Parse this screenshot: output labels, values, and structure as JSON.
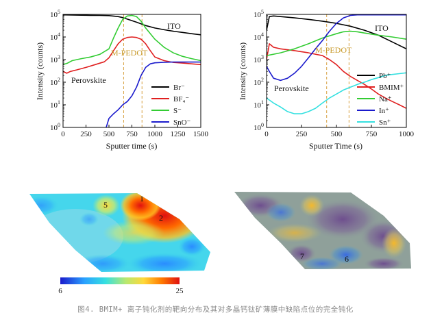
{
  "chart_data": [
    {
      "type": "line",
      "xlabel": "Sputter time (s)",
      "ylabel": "Intensity (counts)",
      "xlim": [
        0,
        1500
      ],
      "ylim": [
        1,
        100000
      ],
      "y_scale": "log",
      "x_ticks": [
        "0",
        "250",
        "500",
        "750",
        "1000",
        "1250",
        "1500"
      ],
      "y_ticks": [
        "10^0",
        "10^1",
        "10^2",
        "10^3",
        "10^4",
        "10^5"
      ],
      "annotations": [
        "ITO",
        "M-PEDOT",
        "Perovskite"
      ],
      "interface_lines_x": [
        660,
        860
      ],
      "legend_position": "lower-right",
      "series": [
        {
          "name": "Br⁻",
          "color": "#000000",
          "x": [
            0,
            100,
            200,
            300,
            400,
            500,
            600,
            650,
            700,
            800,
            900,
            1000,
            1100,
            1200,
            1300,
            1400,
            1500
          ],
          "y": [
            95000,
            93000,
            92000,
            91000,
            90000,
            88000,
            80000,
            72000,
            62000,
            45000,
            32000,
            25000,
            21000,
            18000,
            16000,
            14000,
            12500
          ]
        },
        {
          "name": "BF₄⁻",
          "color": "#e02020",
          "x": [
            0,
            40,
            80,
            150,
            250,
            350,
            450,
            500,
            550,
            600,
            650,
            700,
            750,
            800,
            850,
            900,
            950,
            1000,
            1100,
            1200,
            1300,
            1400,
            1500
          ],
          "y": [
            300,
            250,
            300,
            350,
            450,
            600,
            800,
            1200,
            2500,
            5000,
            8000,
            9500,
            10000,
            9500,
            8000,
            5000,
            2500,
            1300,
            900,
            750,
            700,
            650,
            600
          ]
        },
        {
          "name": "S⁻",
          "color": "#33cc33",
          "x": [
            0,
            50,
            100,
            200,
            300,
            400,
            500,
            550,
            600,
            650,
            700,
            750,
            800,
            850,
            900,
            1000,
            1100,
            1200,
            1300,
            1400,
            1500
          ],
          "y": [
            600,
            700,
            900,
            1100,
            1300,
            1700,
            3000,
            9000,
            25000,
            60000,
            85000,
            90000,
            80000,
            50000,
            25000,
            8000,
            3500,
            2000,
            1400,
            1100,
            900
          ]
        },
        {
          "name": "SnO⁻",
          "color": "#1a1acc",
          "x": [
            470,
            500,
            550,
            600,
            650,
            700,
            750,
            800,
            850,
            900,
            950,
            1000,
            1100,
            1200,
            1300,
            1400,
            1500
          ],
          "y": [
            1,
            2.5,
            4,
            6,
            10,
            14,
            25,
            60,
            200,
            450,
            650,
            720,
            760,
            780,
            780,
            780,
            780
          ]
        }
      ]
    },
    {
      "type": "line",
      "xlabel": "Sputter Time (s)",
      "ylabel": "Intensity (counts)",
      "xlim": [
        0,
        1000
      ],
      "ylim": [
        1,
        100000
      ],
      "y_scale": "log",
      "x_ticks": [
        "0",
        "250",
        "500",
        "750",
        "1000"
      ],
      "y_ticks": [
        "10^0",
        "10^1",
        "10^2",
        "10^3",
        "10^4",
        "10^5"
      ],
      "annotations": [
        "ITO",
        "M-PEDOT",
        "Perovskite"
      ],
      "interface_lines_x": [
        430,
        590
      ],
      "legend_position": "lower-right",
      "series": [
        {
          "name": "Pb⁺",
          "color": "#000000",
          "x": [
            0,
            20,
            50,
            100,
            200,
            300,
            400,
            500,
            600,
            700,
            800,
            900,
            1000
          ],
          "y": [
            20000,
            80000,
            85000,
            80000,
            70000,
            60000,
            50000,
            40000,
            30000,
            20000,
            12000,
            6000,
            3000
          ]
        },
        {
          "name": "BMIM⁺",
          "color": "#e02020",
          "x": [
            0,
            20,
            50,
            100,
            200,
            300,
            400,
            450,
            500,
            550,
            600,
            650,
            700,
            750,
            800,
            850,
            900,
            950,
            1000
          ],
          "y": [
            1000,
            5000,
            3500,
            3000,
            2500,
            2000,
            1500,
            1000,
            600,
            300,
            180,
            120,
            80,
            50,
            30,
            20,
            14,
            10,
            7
          ]
        },
        {
          "name": "Na⁺",
          "color": "#33cc33",
          "x": [
            0,
            100,
            200,
            300,
            400,
            500,
            550,
            600,
            650,
            700,
            800,
            900,
            1000
          ],
          "y": [
            1500,
            2000,
            3000,
            5000,
            9000,
            14000,
            17000,
            18000,
            17000,
            15000,
            12000,
            10000,
            8000
          ]
        },
        {
          "name": "In⁺",
          "color": "#1a1acc",
          "x": [
            0,
            20,
            50,
            100,
            150,
            200,
            250,
            300,
            350,
            400,
            450,
            500,
            550,
            600,
            650,
            700,
            800,
            900,
            1000
          ],
          "y": [
            500,
            300,
            150,
            120,
            150,
            250,
            500,
            1200,
            3000,
            7000,
            18000,
            40000,
            70000,
            90000,
            95000,
            95000,
            95000,
            95000,
            95000
          ]
        },
        {
          "name": "Sn⁺",
          "color": "#33e0e0",
          "x": [
            0,
            50,
            100,
            150,
            200,
            250,
            300,
            350,
            400,
            450,
            500,
            550,
            600,
            650,
            700,
            750,
            800,
            850,
            900,
            950,
            1000
          ],
          "y": [
            20,
            12,
            8,
            5,
            4,
            4,
            5,
            7,
            12,
            20,
            30,
            45,
            60,
            80,
            100,
            130,
            160,
            200,
            220,
            240,
            260
          ]
        }
      ]
    },
    {
      "type": "heatmap",
      "colorbar_ticks": [
        "6",
        "25"
      ],
      "colorbar_range": [
        6,
        25
      ],
      "colorbar_colors": [
        "#1a1acc",
        "#2aa0ff",
        "#35e0e0",
        "#b8e870",
        "#ffd83a",
        "#ff7a00",
        "#e01010"
      ],
      "maps": [
        {
          "labels": [
            "1",
            "2",
            "5"
          ]
        },
        {
          "labels": [
            "6",
            "7"
          ]
        }
      ]
    }
  ],
  "caption": "图4. BMIM+ 离子钝化剂的靶向分布及其对多晶钙钛矿薄膜中缺陷点位的完全钝化"
}
